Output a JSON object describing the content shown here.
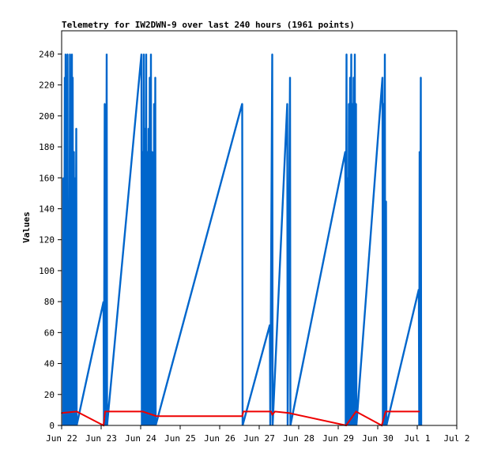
{
  "chart_data": {
    "type": "line",
    "title": "Telemetry for IW2DWN-9 over last 240 hours (1961 points)",
    "xlabel": "",
    "ylabel": "Values",
    "ylim": [
      0,
      255
    ],
    "yticks": [
      0,
      20,
      40,
      60,
      80,
      100,
      120,
      140,
      160,
      180,
      200,
      220,
      240
    ],
    "xlim_days": [
      0,
      10
    ],
    "xticks": [
      {
        "day": 0,
        "label": "Jun 22"
      },
      {
        "day": 1,
        "label": "Jun 23"
      },
      {
        "day": 2,
        "label": "Jun 24"
      },
      {
        "day": 3,
        "label": "Jun 25"
      },
      {
        "day": 4,
        "label": "Jun 26"
      },
      {
        "day": 5,
        "label": "Jun 27"
      },
      {
        "day": 6,
        "label": "Jun 28"
      },
      {
        "day": 7,
        "label": "Jun 29"
      },
      {
        "day": 8,
        "label": "Jun 30"
      },
      {
        "day": 9,
        "label": "Jul 1"
      },
      {
        "day": 10,
        "label": "Jul 2"
      }
    ],
    "colors": {
      "spikes": "#0066cc",
      "line": "#ee0000",
      "axis": "#000000"
    },
    "series": [
      {
        "values": [
          [
            0.04,
            160
          ],
          [
            0.06,
            0
          ],
          [
            0.08,
            225
          ],
          [
            0.09,
            0
          ],
          [
            0.1,
            240
          ],
          [
            0.11,
            0
          ],
          [
            0.12,
            160
          ],
          [
            0.13,
            0
          ],
          [
            0.15,
            240
          ],
          [
            0.16,
            0
          ],
          [
            0.18,
            97
          ],
          [
            0.19,
            0
          ],
          [
            0.21,
            240
          ],
          [
            0.22,
            0
          ],
          [
            0.23,
            208
          ],
          [
            0.24,
            0
          ],
          [
            0.26,
            240
          ],
          [
            0.27,
            0
          ],
          [
            0.28,
            225
          ],
          [
            0.29,
            0
          ],
          [
            0.31,
            177
          ],
          [
            0.32,
            0
          ],
          [
            0.34,
            160
          ],
          [
            0.35,
            0
          ],
          [
            0.37,
            192
          ],
          [
            0.38,
            0
          ],
          [
            1.06,
            80
          ],
          [
            1.07,
            0
          ],
          [
            1.09,
            208
          ],
          [
            1.1,
            0
          ],
          [
            1.11,
            177
          ],
          [
            1.12,
            0
          ],
          [
            1.14,
            240
          ],
          [
            1.15,
            0
          ],
          [
            2.02,
            240
          ],
          [
            2.03,
            0
          ],
          [
            2.05,
            177
          ],
          [
            2.06,
            0
          ],
          [
            2.08,
            240
          ],
          [
            2.09,
            0
          ],
          [
            2.11,
            192
          ],
          [
            2.12,
            0
          ],
          [
            2.14,
            240
          ],
          [
            2.15,
            0
          ],
          [
            2.17,
            177
          ],
          [
            2.18,
            0
          ],
          [
            2.2,
            192
          ],
          [
            2.21,
            0
          ],
          [
            2.23,
            225
          ],
          [
            2.24,
            0
          ],
          [
            2.26,
            240
          ],
          [
            2.27,
            0
          ],
          [
            2.29,
            177
          ],
          [
            2.3,
            0
          ],
          [
            2.32,
            96
          ],
          [
            2.33,
            0
          ],
          [
            2.34,
            208
          ],
          [
            2.35,
            0
          ],
          [
            2.37,
            225
          ],
          [
            2.38,
            0
          ],
          [
            4.57,
            208
          ],
          [
            4.58,
            0
          ],
          [
            5.27,
            65
          ],
          [
            5.28,
            0
          ],
          [
            5.33,
            240
          ],
          [
            5.34,
            0
          ],
          [
            5.71,
            208
          ],
          [
            5.72,
            0
          ],
          [
            5.78,
            225
          ],
          [
            5.79,
            0
          ],
          [
            7.18,
            177
          ],
          [
            7.19,
            0
          ],
          [
            7.21,
            240
          ],
          [
            7.22,
            0
          ],
          [
            7.24,
            160
          ],
          [
            7.25,
            0
          ],
          [
            7.27,
            208
          ],
          [
            7.28,
            0
          ],
          [
            7.3,
            225
          ],
          [
            7.31,
            0
          ],
          [
            7.33,
            240
          ],
          [
            7.34,
            0
          ],
          [
            7.36,
            208
          ],
          [
            7.37,
            0
          ],
          [
            7.39,
            225
          ],
          [
            7.4,
            0
          ],
          [
            7.42,
            240
          ],
          [
            7.43,
            0
          ],
          [
            7.45,
            208
          ],
          [
            7.46,
            0
          ],
          [
            8.12,
            225
          ],
          [
            8.13,
            0
          ],
          [
            8.15,
            208
          ],
          [
            8.16,
            0
          ],
          [
            8.18,
            240
          ],
          [
            8.19,
            0
          ],
          [
            8.21,
            145
          ],
          [
            8.22,
            0
          ],
          [
            9.04,
            88
          ],
          [
            9.05,
            0
          ],
          [
            9.06,
            177
          ],
          [
            9.07,
            0
          ],
          [
            9.09,
            225
          ],
          [
            9.1,
            0
          ]
        ]
      },
      {
        "values": [
          [
            0.0,
            8
          ],
          [
            0.38,
            9
          ],
          [
            1.06,
            0
          ],
          [
            1.1,
            9
          ],
          [
            2.05,
            9
          ],
          [
            2.4,
            6
          ],
          [
            4.57,
            6
          ],
          [
            4.6,
            9
          ],
          [
            5.3,
            9
          ],
          [
            5.33,
            7
          ],
          [
            5.4,
            9
          ],
          [
            5.75,
            8
          ],
          [
            7.2,
            0
          ],
          [
            7.45,
            9
          ],
          [
            8.1,
            0
          ],
          [
            8.2,
            9
          ],
          [
            9.05,
            9
          ]
        ]
      }
    ]
  }
}
